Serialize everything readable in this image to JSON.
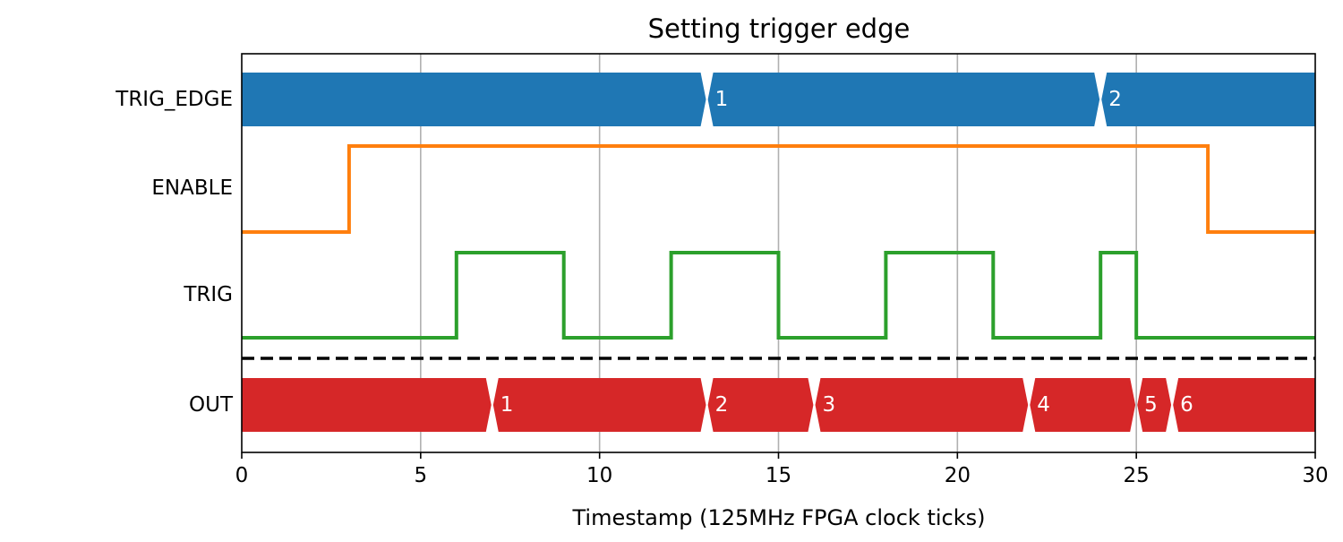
{
  "chart_data": {
    "type": "timing-diagram",
    "title": "Setting trigger edge",
    "xlabel": "Timestamp (125MHz FPGA clock ticks)",
    "xlim": [
      0,
      30
    ],
    "xticks": [
      0,
      5,
      10,
      15,
      20,
      25,
      30
    ],
    "grid": "vertical",
    "colors": {
      "trig_edge": "#1f77b4",
      "enable": "#ff7f0e",
      "trig": "#2ca02c",
      "out": "#d62728",
      "grid": "#b0b0b0",
      "separator": "#000000"
    },
    "signals": [
      {
        "name": "TRIG_EDGE",
        "kind": "bus",
        "segments": [
          {
            "start": 0,
            "end": 13,
            "label": ""
          },
          {
            "start": 13,
            "end": 24,
            "label": "1"
          },
          {
            "start": 24,
            "end": 30,
            "label": "2"
          }
        ]
      },
      {
        "name": "ENABLE",
        "kind": "digital",
        "transitions": [
          [
            0,
            0
          ],
          [
            3,
            1
          ],
          [
            27,
            0
          ]
        ],
        "end": 30
      },
      {
        "name": "TRIG",
        "kind": "digital",
        "transitions": [
          [
            0,
            0
          ],
          [
            6,
            1
          ],
          [
            9,
            0
          ],
          [
            12,
            1
          ],
          [
            15,
            0
          ],
          [
            18,
            1
          ],
          [
            21,
            0
          ],
          [
            24,
            1
          ],
          [
            25,
            0
          ]
        ],
        "end": 30
      },
      {
        "name": "OUT",
        "kind": "bus",
        "segments": [
          {
            "start": 0,
            "end": 7,
            "label": ""
          },
          {
            "start": 7,
            "end": 13,
            "label": "1"
          },
          {
            "start": 13,
            "end": 16,
            "label": "2"
          },
          {
            "start": 16,
            "end": 22,
            "label": "3"
          },
          {
            "start": 22,
            "end": 25,
            "label": "4"
          },
          {
            "start": 25,
            "end": 26,
            "label": "5"
          },
          {
            "start": 26,
            "end": 30,
            "label": "6"
          }
        ]
      }
    ],
    "separator": {
      "style": "dashed",
      "between": [
        "TRIG",
        "OUT"
      ]
    }
  }
}
